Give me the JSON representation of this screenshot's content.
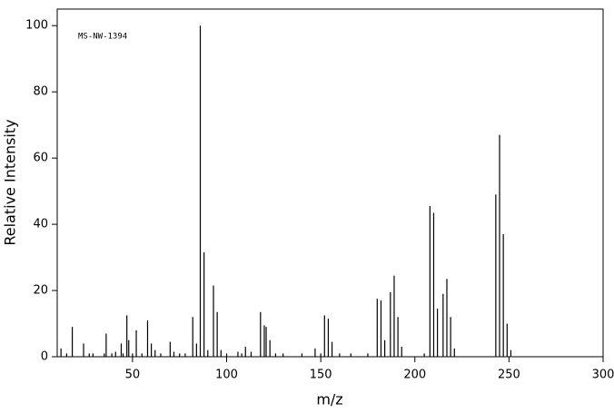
{
  "chart_data": {
    "type": "stem",
    "annotation": "MS-NW-1394",
    "x_label": "m/z",
    "y_label": "Relative Intensity",
    "color": "#000000",
    "x": [
      12,
      15,
      18,
      24,
      27,
      29,
      35,
      36,
      39,
      41,
      44,
      45,
      47,
      48,
      50,
      52,
      55,
      58,
      60,
      62,
      65,
      70,
      72,
      75,
      78,
      82,
      84,
      86,
      88,
      90,
      93,
      95,
      97,
      100,
      106,
      108,
      110,
      113,
      118,
      120,
      121,
      123,
      126,
      130,
      140,
      147,
      150,
      152,
      154,
      156,
      160,
      166,
      175,
      180,
      182,
      184,
      187,
      189,
      191,
      193,
      205,
      208,
      210,
      212,
      215,
      217,
      219,
      221,
      243,
      245,
      247,
      249,
      251
    ],
    "values": [
      2.5,
      1,
      9,
      4,
      1,
      1,
      1,
      7,
      1,
      1.5,
      4,
      1,
      12.5,
      5,
      1,
      8,
      1,
      11,
      4,
      2,
      1,
      4.5,
      1.5,
      1,
      1,
      12,
      4,
      100,
      31.5,
      2,
      21.5,
      13.5,
      2,
      1,
      1.5,
      1,
      3,
      1.5,
      13.5,
      9.5,
      9,
      5,
      1,
      1,
      1,
      2.5,
      1,
      12.5,
      11.5,
      4.5,
      1,
      1,
      1,
      17.5,
      17,
      5,
      19.5,
      24.5,
      12,
      3,
      1,
      45.5,
      43.5,
      14.5,
      19,
      23.5,
      12,
      2.5,
      49,
      67,
      37,
      10,
      2
    ],
    "xlim": [
      10,
      300
    ],
    "ylim": [
      0,
      105
    ],
    "xticks": [
      50,
      100,
      150,
      200,
      250,
      300
    ],
    "yticks": [
      0,
      20,
      40,
      60,
      80,
      100
    ]
  }
}
